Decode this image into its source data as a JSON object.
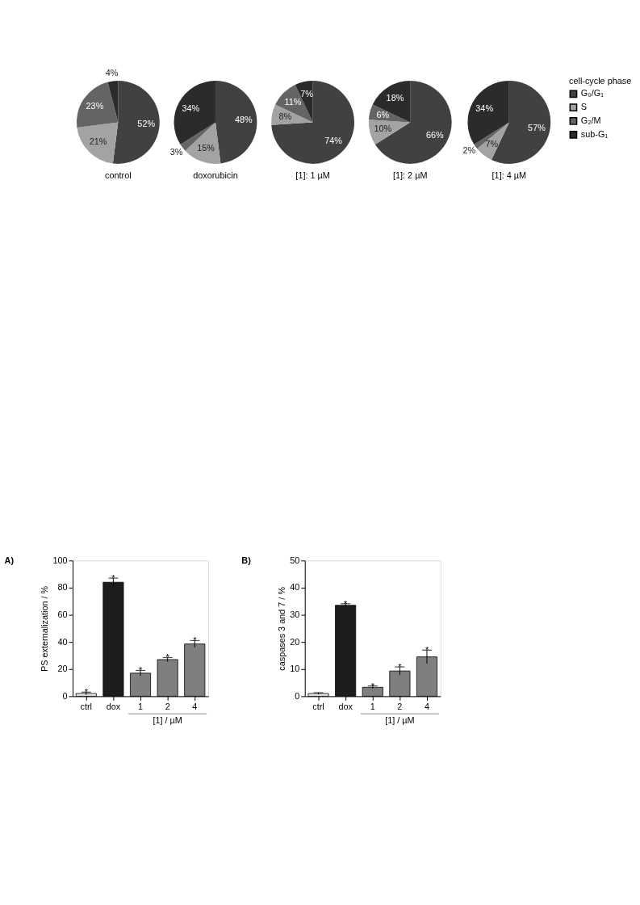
{
  "chart_data": [
    {
      "type": "pie",
      "title": "control",
      "categories": [
        "G₀/G₁",
        "S",
        "G₂/M",
        "sub-G₁"
      ],
      "values": [
        52,
        21,
        23,
        4
      ],
      "colors": [
        "#414141",
        "#a3a3a3",
        "#646464",
        "#2b2b2b"
      ],
      "value_labels": [
        "52%",
        "21%",
        "23%",
        "4%"
      ],
      "legend": "right",
      "legend_title": "cell-cycle phase"
    },
    {
      "type": "pie",
      "title": "doxorubicin",
      "categories": [
        null,
        null,
        null,
        null
      ],
      "values": [
        48,
        15,
        3,
        34
      ],
      "colors": [
        "#414141",
        "#a3a3a3",
        "#646464",
        "#2b2b2b"
      ],
      "value_labels": [
        "48%",
        "15%",
        "3%",
        "34%"
      ]
    },
    {
      "type": "pie",
      "title": "[1]: 1 µM",
      "categories": [
        null,
        null,
        null,
        null
      ],
      "values": [
        74,
        8,
        11,
        7
      ],
      "colors": [
        "#414141",
        "#a3a3a3",
        "#646464",
        "#2b2b2b"
      ],
      "value_labels": [
        "74%",
        "8%",
        "11%",
        "7%"
      ]
    },
    {
      "type": "pie",
      "title": "[1]: 2 µM",
      "categories": [
        null,
        null,
        null,
        null
      ],
      "values": [
        66,
        10,
        6,
        18
      ],
      "colors": [
        "#414141",
        "#a3a3a3",
        "#646464",
        "#2b2b2b"
      ],
      "value_labels": [
        "66%",
        "10%",
        "6%",
        "18%"
      ]
    },
    {
      "type": "pie",
      "title": "[1]: 4 µM",
      "categories": [
        null,
        null,
        null,
        null
      ],
      "values": [
        57,
        7,
        2,
        34
      ],
      "colors": [
        "#414141",
        "#a3a3a3",
        "#646464",
        "#2b2b2b"
      ],
      "value_labels": [
        "57%",
        "7%",
        "2%",
        "34%"
      ]
    },
    {
      "type": "bar",
      "title": "A)",
      "ylabel": "PS externalization / %",
      "categories": [
        "ctrl",
        "dox",
        "1",
        "2",
        "4"
      ],
      "values": [
        2,
        84,
        17,
        27,
        38.5
      ],
      "colors": [
        "#e6e6e6",
        "#1c1c1c",
        "#7f7f7f",
        "#7f7f7f",
        "#7f7f7f"
      ],
      "errors": [
        1,
        3,
        2,
        1.5,
        2.5
      ],
      "ylim": [
        0,
        100
      ],
      "yticks": [
        0,
        20,
        40,
        60,
        80,
        100
      ],
      "grid": false,
      "annotations": [
        {
          "text": "*",
          "x": "ctrl",
          "y": 3
        },
        {
          "text": "*",
          "x": "dox",
          "y": 87
        },
        {
          "text": "*",
          "x": "1",
          "y": 19
        },
        {
          "text": "*",
          "x": "2",
          "y": 28.5
        },
        {
          "text": "*",
          "x": "4",
          "y": 41
        },
        "[1] / µM"
      ]
    },
    {
      "type": "bar",
      "title": "B)",
      "ylabel": "caspases 3 and 7 / %",
      "categories": [
        "ctrl",
        "dox",
        "1",
        "2",
        "4"
      ],
      "values": [
        1,
        33.5,
        3.3,
        9.3,
        14.5
      ],
      "colors": [
        "#e6e6e6",
        "#1c1c1c",
        "#7f7f7f",
        "#7f7f7f",
        "#7f7f7f"
      ],
      "errors": [
        0.3,
        0.6,
        0.5,
        1.5,
        2.5
      ],
      "ylim": [
        0,
        50
      ],
      "yticks": [
        0,
        10,
        20,
        30,
        40,
        50
      ],
      "grid": false,
      "annotations": [
        {
          "text": "*",
          "x": "dox",
          "y": 34.1
        },
        {
          "text": "*",
          "x": "1",
          "y": 3.8
        },
        {
          "text": "*",
          "x": "2",
          "y": 10.8
        },
        {
          "text": "*",
          "x": "4",
          "y": 17
        },
        "[1] / µM"
      ]
    }
  ]
}
